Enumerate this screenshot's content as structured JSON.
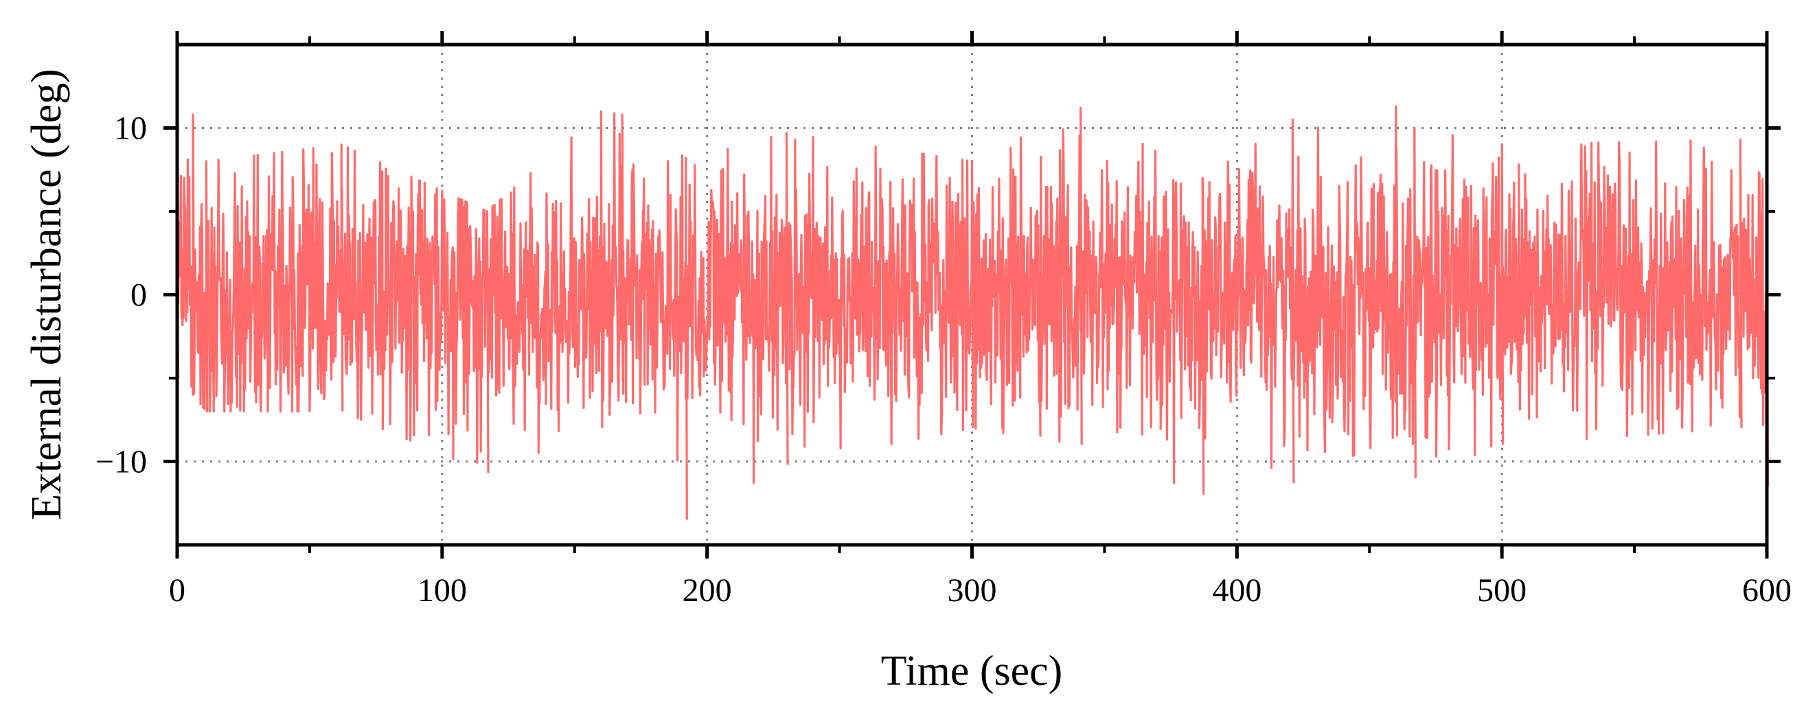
{
  "chart_data": {
    "type": "line",
    "title": "",
    "xlabel": "Time (sec)",
    "ylabel": "External disturbance (deg)",
    "xlim": [
      0,
      600
    ],
    "ylim": [
      -15,
      15
    ],
    "x_ticks": [
      0,
      100,
      200,
      300,
      400,
      500,
      600
    ],
    "y_ticks": [
      -10,
      0,
      10
    ],
    "x_tick_labels": [
      "0",
      "100",
      "200",
      "300",
      "400",
      "500",
      "600"
    ],
    "y_tick_labels": [
      "−10",
      "0",
      "10"
    ],
    "grid": true,
    "legend": "none",
    "series": [
      {
        "color": "#ff6b6b",
        "sample_interval_sec": 0.2,
        "approx_std_deg": 4,
        "envelope": {
          "x": [
            0,
            6,
            11,
            62,
            117,
            160,
            168,
            192,
            230,
            300,
            341,
            387,
            421,
            460,
            467,
            500,
            590,
            600
          ],
          "max": [
            6,
            10.8,
            8,
            9,
            5,
            11,
            10.8,
            8.2,
            9.7,
            8,
            11.2,
            7,
            10.5,
            11.3,
            10,
            9,
            9.3,
            6.5
          ],
          "min": [
            -5,
            -6,
            -7,
            -7,
            -10.7,
            -8,
            -6,
            -13.5,
            -10.2,
            -8,
            -9,
            -12,
            -11.3,
            -8.5,
            -11,
            -9,
            -8,
            -11.5
          ]
        }
      }
    ]
  }
}
